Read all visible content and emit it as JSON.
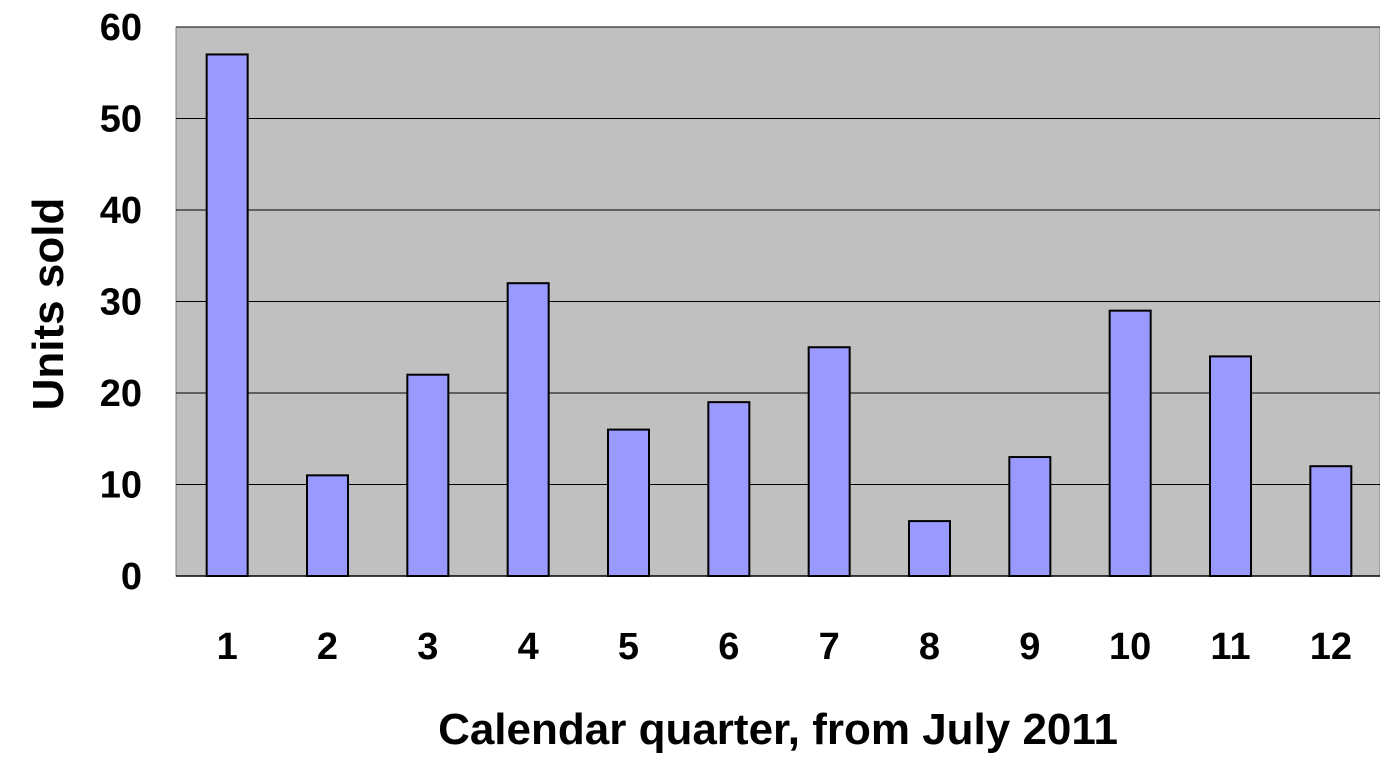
{
  "chart_data": {
    "type": "bar",
    "title": "",
    "xlabel": "Calendar quarter, from July 2011",
    "ylabel": "Units sold",
    "categories": [
      "1",
      "2",
      "3",
      "4",
      "5",
      "6",
      "7",
      "8",
      "9",
      "10",
      "11",
      "12"
    ],
    "values": [
      57,
      11,
      22,
      32,
      16,
      19,
      25,
      6,
      13,
      29,
      24,
      12
    ],
    "ylim": [
      0,
      60
    ],
    "yticks": [
      "0",
      "10",
      "20",
      "30",
      "40",
      "50",
      "60"
    ],
    "grid": "horizontal",
    "legend": "none",
    "colors": {
      "plot_background": "#c0c0c0",
      "bar_fill": "#9999ff",
      "bar_stroke": "#000000",
      "gridline": "#000000",
      "text": "#000000"
    }
  }
}
